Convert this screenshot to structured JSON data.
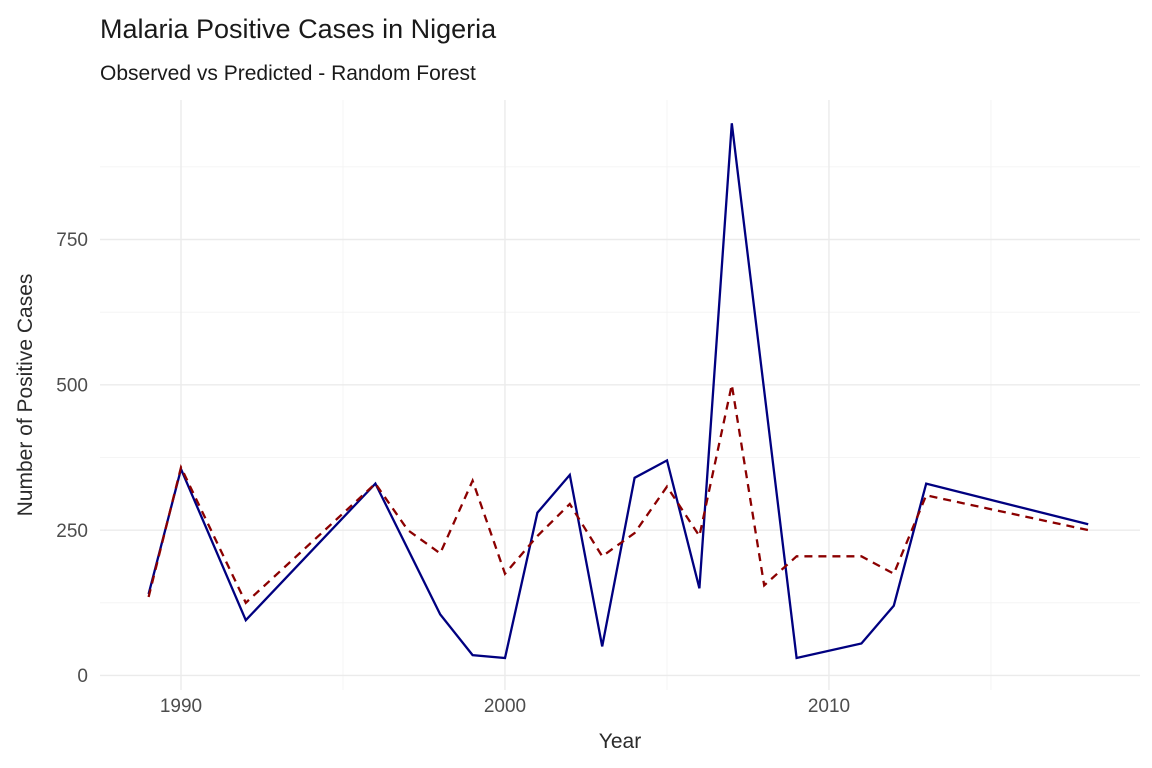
{
  "page": {
    "background": "#ffffff"
  },
  "chart_data": {
    "type": "line",
    "title": "Malaria Positive Cases in Nigeria",
    "subtitle": "Observed vs Predicted - Random Forest",
    "xlabel": "Year",
    "ylabel": "Number of Positive Cases",
    "legend_position": "none",
    "grid": true,
    "xlim": [
      1987.5,
      2019.6
    ],
    "ylim": [
      -25,
      990
    ],
    "x_ticks": [
      1990,
      2000,
      2010
    ],
    "y_ticks": [
      0,
      250,
      500,
      750
    ],
    "x_minor_gridlines": [
      1995,
      2005,
      2015
    ],
    "y_minor_gridlines": [
      125,
      375,
      625,
      875
    ],
    "series": [
      {
        "name": "Observed",
        "color": "#000080",
        "line_style": "solid",
        "x": [
          1989,
          1990,
          1992,
          1996,
          1998,
          1999,
          2000,
          2001,
          2002,
          2003,
          2004,
          2005,
          2006,
          2007,
          2009,
          2011,
          2012,
          2013,
          2018
        ],
        "values": [
          140,
          355,
          95,
          330,
          105,
          35,
          30,
          280,
          345,
          50,
          340,
          370,
          150,
          950,
          30,
          55,
          120,
          330,
          260
        ]
      },
      {
        "name": "Predicted",
        "color": "#8B0000",
        "line_style": "dashed",
        "x": [
          1989,
          1990,
          1992,
          1996,
          1997,
          1998,
          1999,
          2000,
          2001,
          2002,
          2003,
          2004,
          2005,
          2006,
          2007,
          2008,
          2009,
          2010,
          2011,
          2012,
          2013,
          2018
        ],
        "values": [
          135,
          358,
          125,
          330,
          250,
          210,
          335,
          175,
          240,
          295,
          205,
          245,
          325,
          240,
          500,
          155,
          205,
          205,
          205,
          175,
          310,
          250
        ]
      }
    ]
  }
}
